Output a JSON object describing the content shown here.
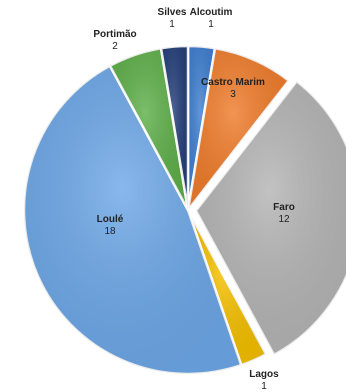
{
  "chart_data": {
    "type": "pie",
    "title": "",
    "slices": [
      {
        "label": "Alcoutim",
        "value": 1,
        "color": "#3f7fd0"
      },
      {
        "label": "Castro Marim",
        "value": 3,
        "color": "#f07d2c"
      },
      {
        "label": "Faro",
        "value": 12,
        "color": "#b5b5b5",
        "exploded": true
      },
      {
        "label": "Lagos",
        "value": 1,
        "color": "#f5c000"
      },
      {
        "label": "Loulé",
        "value": 18,
        "color": "#6ea8e8"
      },
      {
        "label": "Portimão",
        "value": 2,
        "color": "#5fb04a"
      },
      {
        "label": "Silves",
        "value": 1,
        "color": "#253f7a"
      }
    ],
    "legend": "none"
  }
}
